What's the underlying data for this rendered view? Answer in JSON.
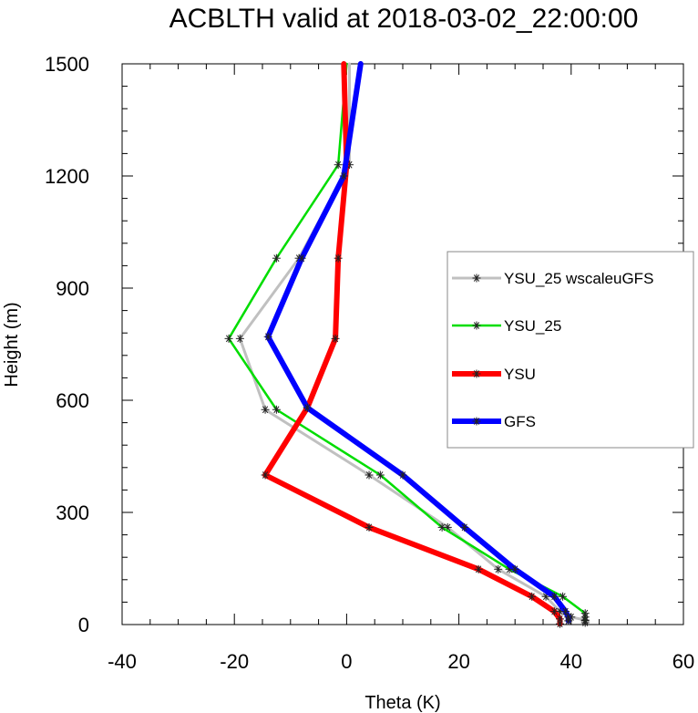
{
  "chart_data": {
    "type": "line",
    "title": "ACBLTH valid at 2018-03-02_22:00:00",
    "xlabel": "Theta (K)",
    "ylabel": "Height (m)",
    "xlim": [
      -40,
      60
    ],
    "ylim": [
      0,
      1500
    ],
    "x_ticks": [
      "-40",
      "-20",
      "0",
      "20",
      "40",
      "60"
    ],
    "y_ticks": [
      "0",
      "300",
      "600",
      "900",
      "1200",
      "1500"
    ],
    "legend_position": "right",
    "series": [
      {
        "name": "YSU_25 wscaleuGFS",
        "color": "#c0c0c0",
        "marker": "asterisk",
        "points": [
          [
            42.5,
            5
          ],
          [
            42.5,
            12
          ],
          [
            40,
            20
          ],
          [
            38,
            35
          ],
          [
            35.5,
            75
          ],
          [
            27,
            148
          ],
          [
            18,
            260
          ],
          [
            4,
            400
          ],
          [
            -14.5,
            575
          ],
          [
            -19,
            765
          ],
          [
            -8.5,
            980
          ],
          [
            0.5,
            1230
          ],
          [
            0.5,
            1500
          ]
        ]
      },
      {
        "name": "YSU_25",
        "color": "#00dd00",
        "marker": "asterisk",
        "points": [
          [
            42.5,
            10
          ],
          [
            42.5,
            20
          ],
          [
            42.5,
            30
          ],
          [
            38.5,
            75
          ],
          [
            29,
            148
          ],
          [
            17,
            260
          ],
          [
            6,
            400
          ],
          [
            -12.5,
            575
          ],
          [
            -21,
            765
          ],
          [
            -12.5,
            980
          ],
          [
            -1.5,
            1230
          ],
          [
            0,
            1500
          ]
        ]
      },
      {
        "name": "YSU",
        "color": "#ff0000",
        "marker": "asterisk",
        "points": [
          [
            38,
            2
          ],
          [
            38,
            15
          ],
          [
            37,
            35
          ],
          [
            33,
            75
          ],
          [
            23.5,
            148
          ],
          [
            4,
            260
          ],
          [
            -14.5,
            400
          ],
          [
            -7,
            580
          ],
          [
            -2,
            765
          ],
          [
            -1.5,
            980
          ],
          [
            0,
            1230
          ],
          [
            -0.5,
            1500
          ]
        ]
      },
      {
        "name": "GFS",
        "color": "#0000ff",
        "marker": "asterisk",
        "points": [
          [
            39.5,
            10
          ],
          [
            39.5,
            20
          ],
          [
            39,
            35
          ],
          [
            37,
            75
          ],
          [
            30,
            148
          ],
          [
            21,
            260
          ],
          [
            10,
            400
          ],
          [
            -7,
            580
          ],
          [
            -14,
            770
          ],
          [
            -8,
            980
          ],
          [
            -0.5,
            1200
          ],
          [
            2.5,
            1500
          ]
        ]
      }
    ]
  }
}
